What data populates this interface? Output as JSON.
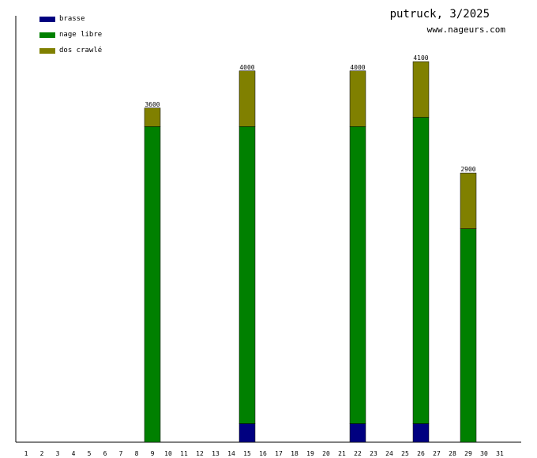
{
  "header": {
    "title": "putruck, 3/2025",
    "site": "www.nageurs.com"
  },
  "chart_data": {
    "type": "bar",
    "stacked": true,
    "title": "putruck, 3/2025",
    "xlabel": "",
    "ylabel": "",
    "ylim": [
      0,
      4100
    ],
    "categories": [
      "1",
      "2",
      "3",
      "4",
      "5",
      "6",
      "7",
      "8",
      "9",
      "10",
      "11",
      "12",
      "13",
      "14",
      "15",
      "16",
      "17",
      "18",
      "19",
      "20",
      "21",
      "22",
      "23",
      "24",
      "25",
      "26",
      "27",
      "28",
      "29",
      "30",
      "31"
    ],
    "series": [
      {
        "name": "brasse",
        "color": "#000080",
        "values": [
          0,
          0,
          0,
          0,
          0,
          0,
          0,
          0,
          0,
          0,
          0,
          0,
          0,
          0,
          200,
          0,
          0,
          0,
          0,
          0,
          0,
          200,
          0,
          0,
          0,
          200,
          0,
          0,
          0,
          0,
          0
        ]
      },
      {
        "name": "nage libre",
        "color": "#008000",
        "values": [
          0,
          0,
          0,
          0,
          0,
          0,
          0,
          0,
          3400,
          0,
          0,
          0,
          0,
          0,
          3200,
          0,
          0,
          0,
          0,
          0,
          0,
          3200,
          0,
          0,
          0,
          3300,
          0,
          0,
          2300,
          0,
          0
        ]
      },
      {
        "name": "dos crawlé",
        "color": "#808000",
        "values": [
          0,
          0,
          0,
          0,
          0,
          0,
          0,
          0,
          200,
          0,
          0,
          0,
          0,
          0,
          600,
          0,
          0,
          0,
          0,
          0,
          0,
          600,
          0,
          0,
          0,
          600,
          0,
          0,
          600,
          0,
          0
        ]
      }
    ],
    "totals": [
      0,
      0,
      0,
      0,
      0,
      0,
      0,
      0,
      3600,
      0,
      0,
      0,
      0,
      0,
      4000,
      0,
      0,
      0,
      0,
      0,
      0,
      4000,
      0,
      0,
      0,
      4100,
      0,
      0,
      2900,
      0,
      0
    ],
    "legend_position": "top-left",
    "grid": false
  }
}
